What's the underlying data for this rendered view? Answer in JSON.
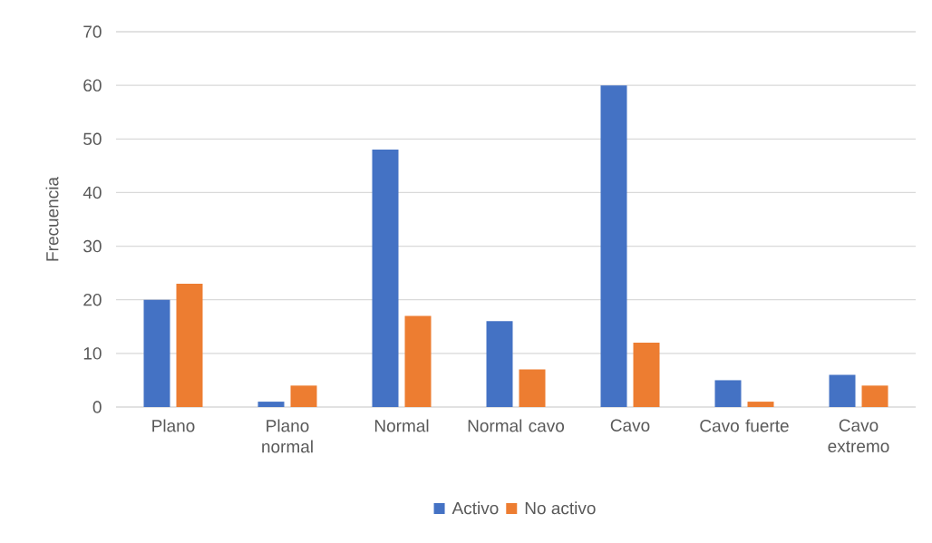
{
  "chart_data": {
    "type": "bar",
    "ylabel": "Frecuencia",
    "categories": [
      "Plano",
      "Plano normal",
      "Normal",
      "Normal cavo",
      "Cavo",
      "Cavo fuerte",
      "Cavo extremo"
    ],
    "series": [
      {
        "name": "Activo",
        "color": "#4472c4",
        "values": [
          20,
          1,
          48,
          16,
          60,
          5,
          6
        ]
      },
      {
        "name": "No activo",
        "color": "#ed7d31",
        "values": [
          23,
          4,
          17,
          7,
          12,
          1,
          4
        ]
      }
    ],
    "ylim": [
      0,
      70
    ],
    "yticks": [
      0,
      10,
      20,
      30,
      40,
      50,
      60,
      70
    ],
    "grid": "y",
    "legend": "bottom"
  }
}
